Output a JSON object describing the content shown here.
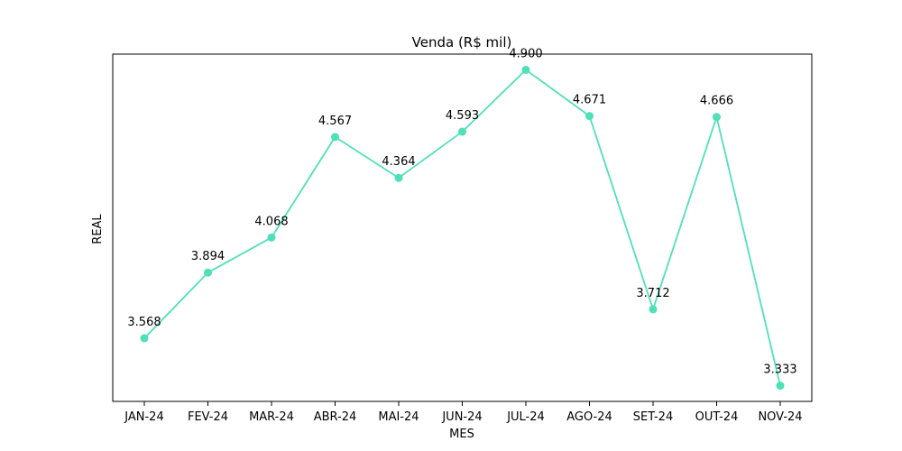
{
  "chart_data": {
    "type": "line",
    "title": "Venda (R$ mil)",
    "xlabel": "MES",
    "ylabel": "REAL",
    "categories": [
      "JAN-24",
      "FEV-24",
      "MAR-24",
      "ABR-24",
      "MAI-24",
      "JUN-24",
      "JUL-24",
      "AGO-24",
      "SET-24",
      "OUT-24",
      "NOV-24"
    ],
    "series": [
      {
        "values": [
          3.568,
          3.894,
          4.068,
          4.567,
          4.364,
          4.593,
          4.9,
          4.671,
          3.712,
          4.666,
          3.333
        ],
        "labels": [
          "3.568",
          "3.894",
          "4.068",
          "4.567",
          "4.364",
          "4.593",
          "4.900",
          "4.671",
          "3.712",
          "4.666",
          "3.333"
        ]
      }
    ],
    "ylim": [
      3.255,
      4.978
    ],
    "yticks_visible": false,
    "grid": false,
    "colors": {
      "line": "#4fe0b8"
    }
  }
}
